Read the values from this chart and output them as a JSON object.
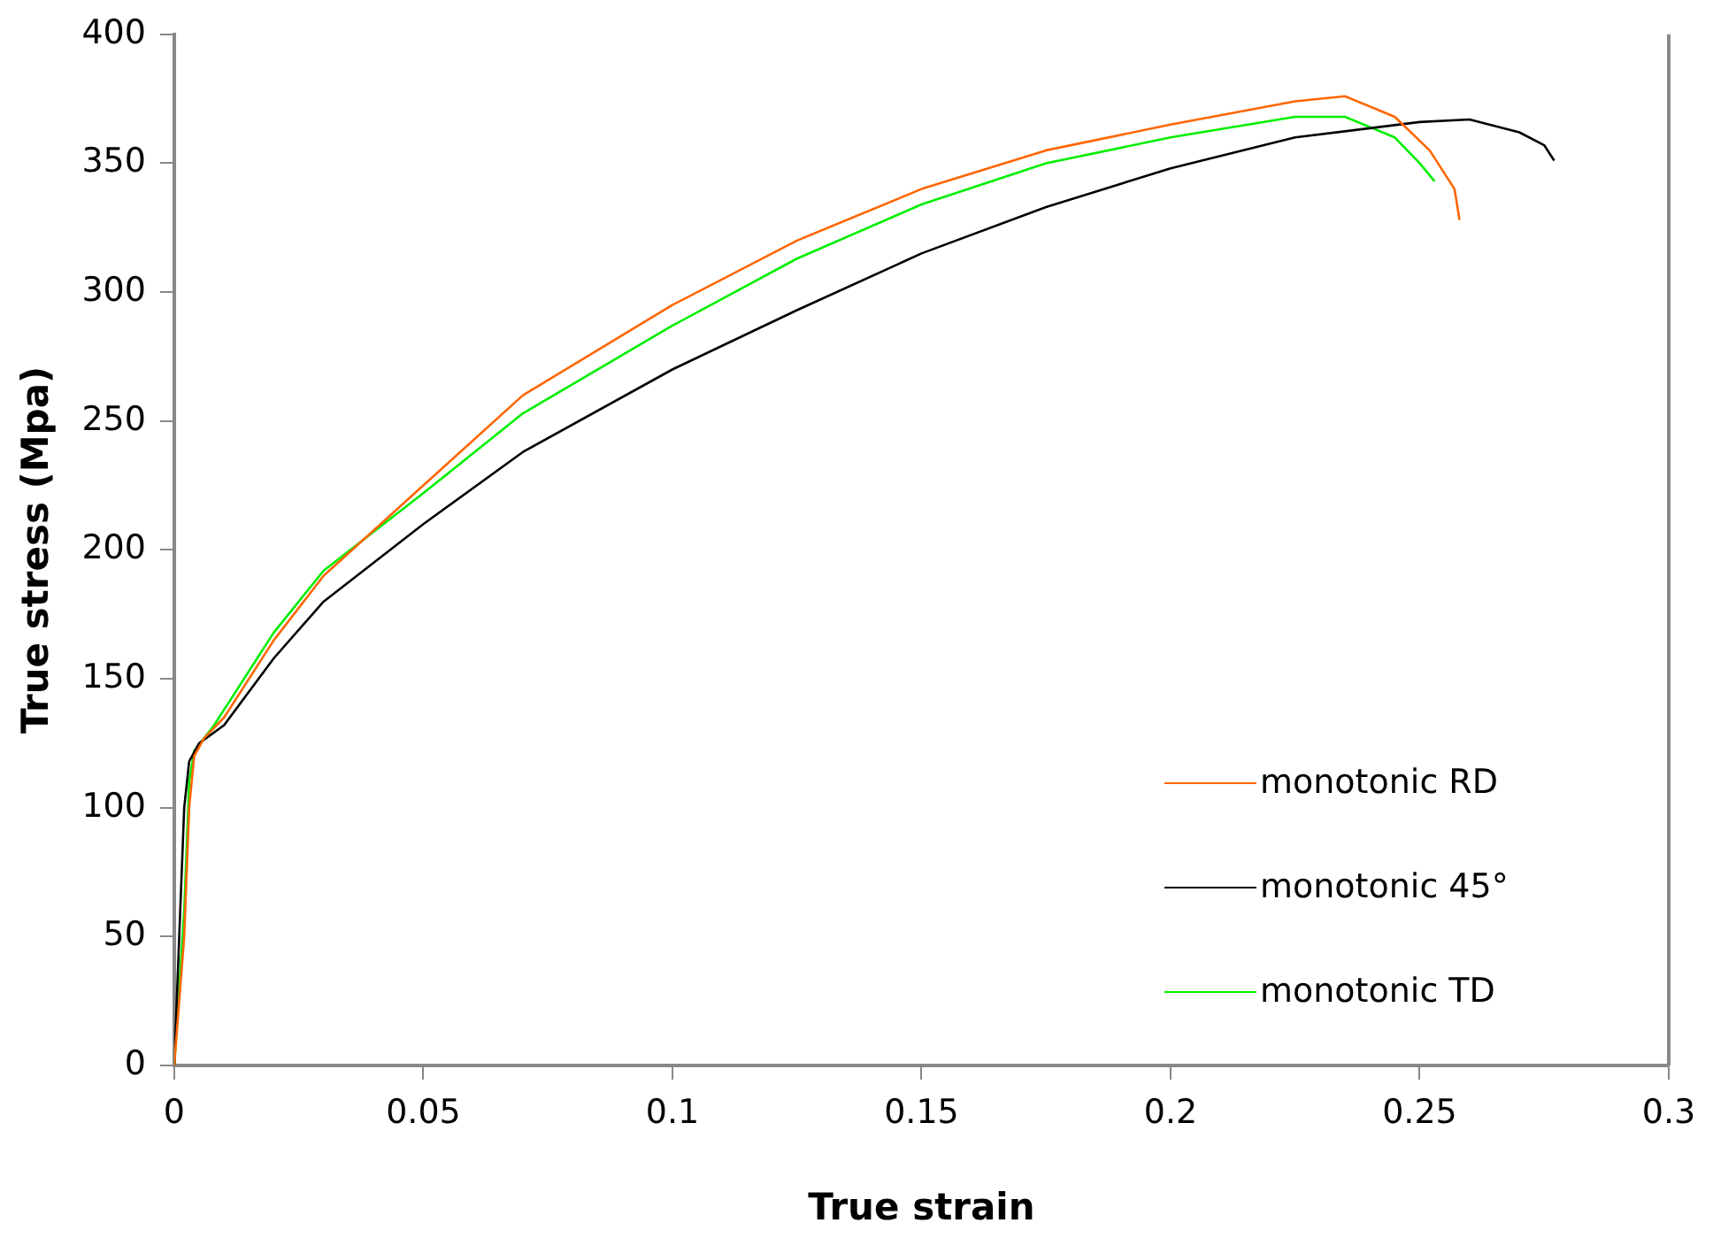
{
  "chart_data": {
    "type": "line",
    "xlabel": "True strain",
    "ylabel": "True stress (Mpa)",
    "xlim": [
      0,
      0.3
    ],
    "xticks": [
      0,
      0.05,
      0.1,
      0.15,
      0.2,
      0.25,
      0.3
    ],
    "ylim": [
      0,
      400
    ],
    "yticks": [
      0,
      50,
      100,
      150,
      200,
      250,
      300,
      350,
      400
    ],
    "grid": false,
    "legend": "right",
    "marker": "none",
    "line_style": "solid",
    "series": [
      {
        "name": "monotonic RD",
        "color": "#ff6600",
        "x": [
          0,
          0.002,
          0.003,
          0.004,
          0.006,
          0.01,
          0.02,
          0.03,
          0.05,
          0.07,
          0.1,
          0.125,
          0.15,
          0.175,
          0.2,
          0.225,
          0.235,
          0.245,
          0.252,
          0.257,
          0.258
        ],
        "values": [
          0,
          50,
          100,
          120,
          127,
          135,
          165,
          190,
          225,
          260,
          295,
          320,
          340,
          355,
          365,
          374,
          376,
          368,
          355,
          340,
          328
        ]
      },
      {
        "name": "monotonic 45°",
        "color": "#000000",
        "x": [
          0,
          0.001,
          0.002,
          0.003,
          0.005,
          0.01,
          0.02,
          0.03,
          0.05,
          0.07,
          0.1,
          0.125,
          0.15,
          0.175,
          0.2,
          0.225,
          0.25,
          0.26,
          0.27,
          0.275,
          0.277
        ],
        "values": [
          0,
          50,
          100,
          118,
          125,
          132,
          158,
          180,
          210,
          238,
          270,
          293,
          315,
          333,
          348,
          360,
          366,
          367,
          362,
          357,
          351
        ]
      },
      {
        "name": "monotonic TD",
        "color": "#00ee00",
        "x": [
          0,
          0.002,
          0.003,
          0.004,
          0.008,
          0.02,
          0.03,
          0.05,
          0.07,
          0.1,
          0.125,
          0.15,
          0.175,
          0.2,
          0.225,
          0.235,
          0.245,
          0.25,
          0.253
        ],
        "values": [
          0,
          60,
          110,
          122,
          132,
          168,
          192,
          222,
          253,
          287,
          313,
          334,
          350,
          360,
          368,
          368,
          360,
          350,
          343
        ]
      }
    ]
  }
}
